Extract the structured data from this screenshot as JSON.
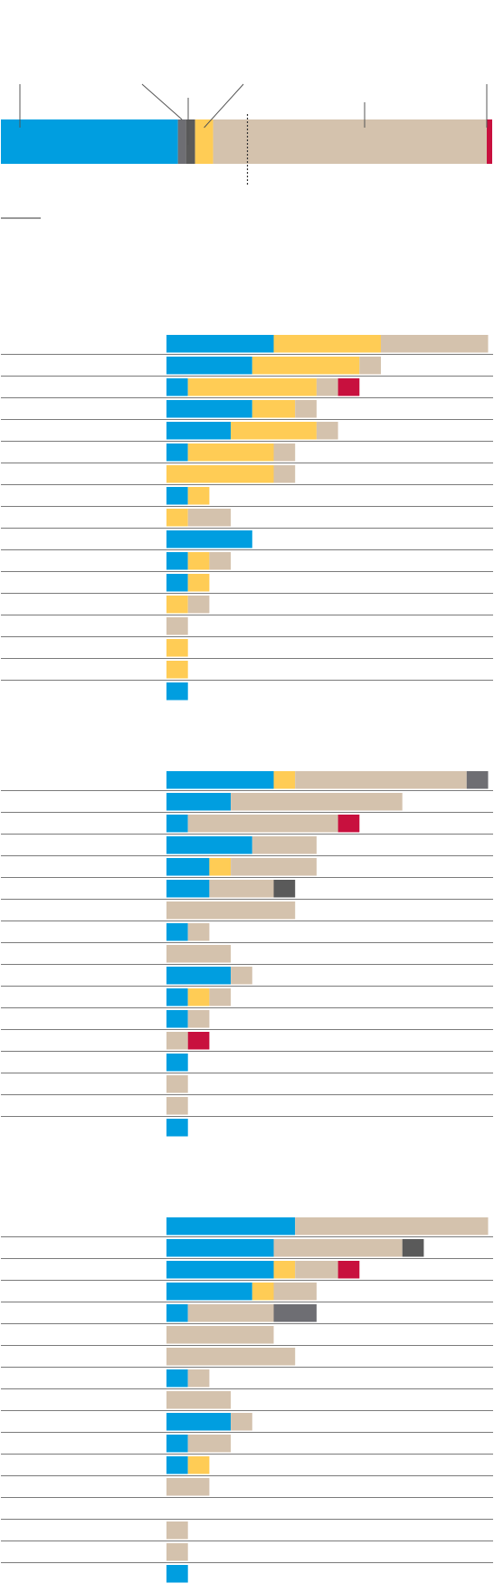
{
  "colors": {
    "blue": "#009ee0",
    "yellow": "#ffcc55",
    "tan": "#d4c2ad",
    "crimson": "#c8103e",
    "darkgrey": "#6e6e73",
    "midgrey": "#5a5a5a",
    "rule": "#7a7a7a"
  },
  "chart_data": [
    {
      "type": "bar",
      "orientation": "horizontal",
      "stacked": true,
      "title": "",
      "segments": [
        {
          "color": "blue",
          "value": 196
        },
        {
          "color": "darkgrey",
          "value": 9
        },
        {
          "color": "midgrey",
          "value": 10
        },
        {
          "color": "yellow",
          "value": 20
        },
        {
          "color": "tan",
          "value": 303
        },
        {
          "color": "crimson",
          "value": 6
        }
      ],
      "total": 544,
      "reference_line_value": 273
    },
    {
      "type": "bar",
      "orientation": "horizontal",
      "stacked": true,
      "xlim": [
        0,
        15
      ],
      "rows": [
        {
          "segments": [
            {
              "color": "blue",
              "value": 5
            },
            {
              "color": "yellow",
              "value": 5
            },
            {
              "color": "tan",
              "value": 5
            }
          ]
        },
        {
          "segments": [
            {
              "color": "blue",
              "value": 4
            },
            {
              "color": "yellow",
              "value": 5
            },
            {
              "color": "tan",
              "value": 1
            }
          ]
        },
        {
          "segments": [
            {
              "color": "blue",
              "value": 1
            },
            {
              "color": "yellow",
              "value": 6
            },
            {
              "color": "tan",
              "value": 1
            },
            {
              "color": "crimson",
              "value": 1
            }
          ]
        },
        {
          "segments": [
            {
              "color": "blue",
              "value": 4
            },
            {
              "color": "yellow",
              "value": 2
            },
            {
              "color": "tan",
              "value": 1
            }
          ]
        },
        {
          "segments": [
            {
              "color": "blue",
              "value": 3
            },
            {
              "color": "yellow",
              "value": 4
            },
            {
              "color": "tan",
              "value": 1
            }
          ]
        },
        {
          "segments": [
            {
              "color": "blue",
              "value": 1
            },
            {
              "color": "yellow",
              "value": 4
            },
            {
              "color": "tan",
              "value": 1
            }
          ]
        },
        {
          "segments": [
            {
              "color": "yellow",
              "value": 5
            },
            {
              "color": "tan",
              "value": 1
            }
          ]
        },
        {
          "segments": [
            {
              "color": "blue",
              "value": 1
            },
            {
              "color": "yellow",
              "value": 1
            }
          ]
        },
        {
          "segments": [
            {
              "color": "yellow",
              "value": 1
            },
            {
              "color": "tan",
              "value": 2
            }
          ]
        },
        {
          "segments": [
            {
              "color": "blue",
              "value": 4
            }
          ]
        },
        {
          "segments": [
            {
              "color": "blue",
              "value": 1
            },
            {
              "color": "yellow",
              "value": 1
            },
            {
              "color": "tan",
              "value": 1
            }
          ]
        },
        {
          "segments": [
            {
              "color": "blue",
              "value": 1
            },
            {
              "color": "yellow",
              "value": 1
            }
          ]
        },
        {
          "segments": [
            {
              "color": "yellow",
              "value": 1
            },
            {
              "color": "tan",
              "value": 1
            }
          ]
        },
        {
          "segments": [
            {
              "color": "tan",
              "value": 1
            }
          ]
        },
        {
          "segments": [
            {
              "color": "yellow",
              "value": 1
            }
          ]
        },
        {
          "segments": [
            {
              "color": "yellow",
              "value": 1
            }
          ]
        },
        {
          "segments": [
            {
              "color": "blue",
              "value": 1
            }
          ]
        }
      ]
    },
    {
      "type": "bar",
      "orientation": "horizontal",
      "stacked": true,
      "xlim": [
        0,
        15
      ],
      "rows": [
        {
          "segments": [
            {
              "color": "blue",
              "value": 5
            },
            {
              "color": "yellow",
              "value": 1
            },
            {
              "color": "tan",
              "value": 8
            },
            {
              "color": "darkgrey",
              "value": 1
            }
          ]
        },
        {
          "segments": [
            {
              "color": "blue",
              "value": 3
            },
            {
              "color": "tan",
              "value": 8
            }
          ]
        },
        {
          "segments": [
            {
              "color": "blue",
              "value": 1
            },
            {
              "color": "tan",
              "value": 7
            },
            {
              "color": "crimson",
              "value": 1
            }
          ]
        },
        {
          "segments": [
            {
              "color": "blue",
              "value": 4
            },
            {
              "color": "tan",
              "value": 3
            }
          ]
        },
        {
          "segments": [
            {
              "color": "blue",
              "value": 2
            },
            {
              "color": "yellow",
              "value": 1
            },
            {
              "color": "tan",
              "value": 4
            }
          ]
        },
        {
          "segments": [
            {
              "color": "blue",
              "value": 2
            },
            {
              "color": "tan",
              "value": 3
            },
            {
              "color": "midgrey",
              "value": 1
            }
          ]
        },
        {
          "segments": [
            {
              "color": "tan",
              "value": 6
            }
          ]
        },
        {
          "segments": [
            {
              "color": "blue",
              "value": 1
            },
            {
              "color": "tan",
              "value": 1
            }
          ]
        },
        {
          "segments": [
            {
              "color": "tan",
              "value": 3
            }
          ]
        },
        {
          "segments": [
            {
              "color": "blue",
              "value": 3
            },
            {
              "color": "tan",
              "value": 1
            }
          ]
        },
        {
          "segments": [
            {
              "color": "blue",
              "value": 1
            },
            {
              "color": "yellow",
              "value": 1
            },
            {
              "color": "tan",
              "value": 1
            }
          ]
        },
        {
          "segments": [
            {
              "color": "blue",
              "value": 1
            },
            {
              "color": "tan",
              "value": 1
            }
          ]
        },
        {
          "segments": [
            {
              "color": "tan",
              "value": 1
            },
            {
              "color": "crimson",
              "value": 1
            }
          ]
        },
        {
          "segments": [
            {
              "color": "blue",
              "value": 1
            }
          ]
        },
        {
          "segments": [
            {
              "color": "tan",
              "value": 1
            }
          ]
        },
        {
          "segments": [
            {
              "color": "tan",
              "value": 1
            }
          ]
        },
        {
          "segments": [
            {
              "color": "blue",
              "value": 1
            }
          ]
        }
      ]
    },
    {
      "type": "bar",
      "orientation": "horizontal",
      "stacked": true,
      "xlim": [
        0,
        15
      ],
      "rows": [
        {
          "segments": [
            {
              "color": "blue",
              "value": 6
            },
            {
              "color": "tan",
              "value": 9
            }
          ]
        },
        {
          "segments": [
            {
              "color": "blue",
              "value": 5
            },
            {
              "color": "tan",
              "value": 6
            },
            {
              "color": "midgrey",
              "value": 1
            }
          ]
        },
        {
          "segments": [
            {
              "color": "blue",
              "value": 5
            },
            {
              "color": "yellow",
              "value": 1
            },
            {
              "color": "tan",
              "value": 2
            },
            {
              "color": "crimson",
              "value": 1
            }
          ]
        },
        {
          "segments": [
            {
              "color": "blue",
              "value": 4
            },
            {
              "color": "yellow",
              "value": 1
            },
            {
              "color": "tan",
              "value": 2
            }
          ]
        },
        {
          "segments": [
            {
              "color": "blue",
              "value": 1
            },
            {
              "color": "tan",
              "value": 4
            },
            {
              "color": "darkgrey",
              "value": 2
            }
          ]
        },
        {
          "segments": [
            {
              "color": "tan",
              "value": 5
            }
          ]
        },
        {
          "segments": [
            {
              "color": "tan",
              "value": 6
            }
          ]
        },
        {
          "segments": [
            {
              "color": "blue",
              "value": 1
            },
            {
              "color": "tan",
              "value": 1
            }
          ]
        },
        {
          "segments": [
            {
              "color": "tan",
              "value": 3
            }
          ]
        },
        {
          "segments": [
            {
              "color": "blue",
              "value": 3
            },
            {
              "color": "tan",
              "value": 1
            }
          ]
        },
        {
          "segments": [
            {
              "color": "blue",
              "value": 1
            },
            {
              "color": "tan",
              "value": 2
            }
          ]
        },
        {
          "segments": [
            {
              "color": "blue",
              "value": 1
            },
            {
              "color": "yellow",
              "value": 1
            }
          ]
        },
        {
          "segments": [
            {
              "color": "tan",
              "value": 2
            }
          ]
        },
        {
          "segments": []
        },
        {
          "segments": [
            {
              "color": "tan",
              "value": 1
            }
          ]
        },
        {
          "segments": [
            {
              "color": "tan",
              "value": 1
            }
          ]
        },
        {
          "segments": [
            {
              "color": "blue",
              "value": 1
            }
          ]
        }
      ]
    }
  ]
}
